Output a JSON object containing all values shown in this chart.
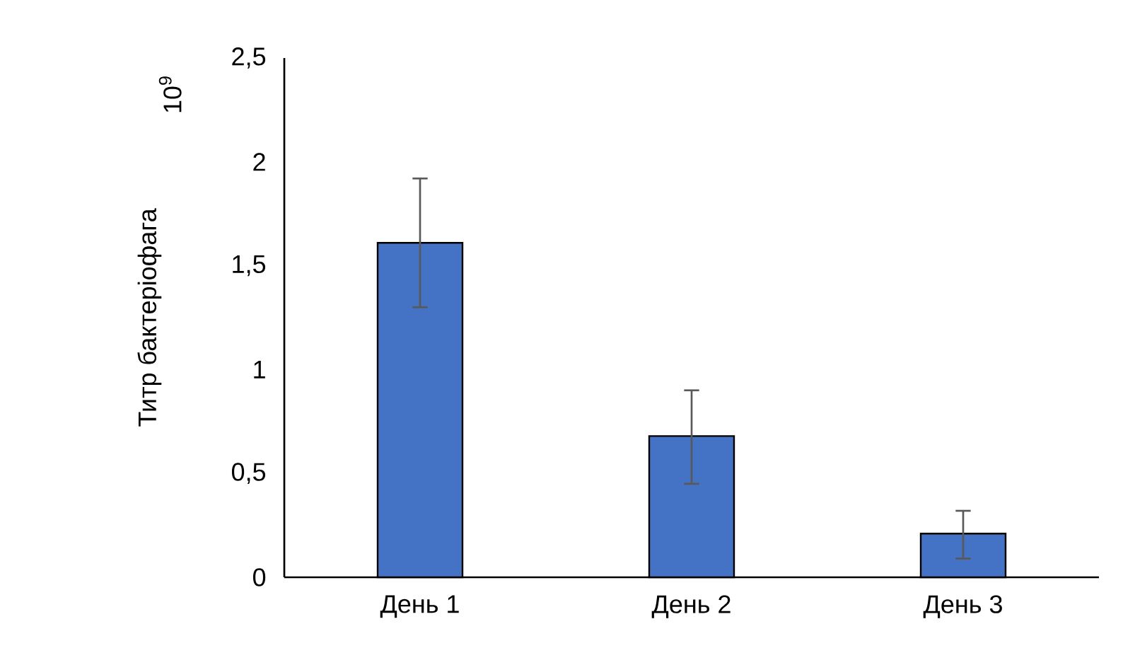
{
  "chart_data": {
    "type": "bar",
    "ylabel": "Титр бактеріофага",
    "annotations": [
      "10$^{9}$"
    ],
    "categories": [
      "День 1",
      "День 2",
      "День 3"
    ],
    "values": [
      1.61,
      0.68,
      0.21
    ],
    "color": "#4472c4",
    "errors": [
      [
        1.3,
        1.92
      ],
      [
        0.45,
        0.9
      ],
      [
        0.09,
        0.32
      ]
    ],
    "ylim": [
      0,
      2.5
    ],
    "yticks": [
      0,
      {
        "value": 0.5,
        "label": "0,5"
      },
      1,
      {
        "value": 1.5,
        "label": "1,5"
      },
      2,
      {
        "value": 2.5,
        "label": "2,5"
      }
    ]
  }
}
